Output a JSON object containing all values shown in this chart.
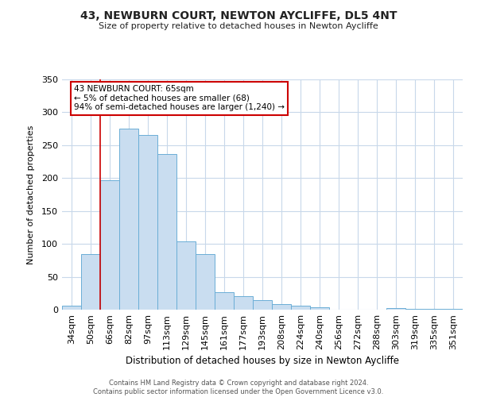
{
  "title": "43, NEWBURN COURT, NEWTON AYCLIFFE, DL5 4NT",
  "subtitle": "Size of property relative to detached houses in Newton Aycliffe",
  "xlabel": "Distribution of detached houses by size in Newton Aycliffe",
  "ylabel": "Number of detached properties",
  "bar_color": "#c9ddf0",
  "bar_edge_color": "#6baed6",
  "categories": [
    "34sqm",
    "50sqm",
    "66sqm",
    "82sqm",
    "97sqm",
    "113sqm",
    "129sqm",
    "145sqm",
    "161sqm",
    "177sqm",
    "193sqm",
    "208sqm",
    "224sqm",
    "240sqm",
    "256sqm",
    "272sqm",
    "288sqm",
    "303sqm",
    "319sqm",
    "335sqm",
    "351sqm"
  ],
  "values": [
    6,
    84,
    197,
    275,
    266,
    236,
    104,
    84,
    27,
    20,
    15,
    8,
    6,
    4,
    0,
    0,
    0,
    2,
    1,
    1,
    1
  ],
  "ylim": [
    0,
    350
  ],
  "yticks": [
    0,
    50,
    100,
    150,
    200,
    250,
    300,
    350
  ],
  "marker_label_line1": "43 NEWBURN COURT: 65sqm",
  "marker_label_line2": "← 5% of detached houses are smaller (68)",
  "marker_label_line3": "94% of semi-detached houses are larger (1,240) →",
  "annotation_box_color": "#ffffff",
  "annotation_box_edge_color": "#cc0000",
  "vline_color": "#cc0000",
  "footer_line1": "Contains HM Land Registry data © Crown copyright and database right 2024.",
  "footer_line2": "Contains public sector information licensed under the Open Government Licence v3.0.",
  "background_color": "#ffffff",
  "grid_color": "#c8d8ea"
}
